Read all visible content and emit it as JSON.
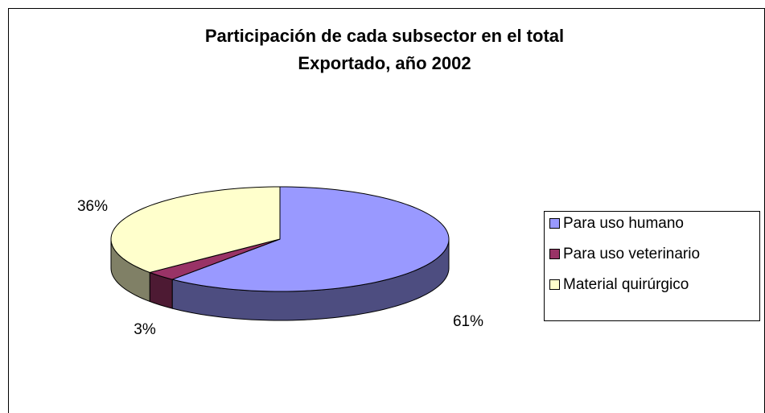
{
  "chart_data": {
    "type": "pie",
    "title": [
      "Participación de cada subsector en el total",
      "Exportado, año 2002"
    ],
    "categories": [
      "Para uso humano",
      "Para uso veterinario",
      "Material quirúrgico"
    ],
    "values": [
      61,
      3,
      36
    ],
    "value_labels": [
      "61%",
      "3%",
      "36%"
    ],
    "colors": [
      "#9999ff",
      "#993366",
      "#ffffcc"
    ],
    "legend": "right"
  }
}
